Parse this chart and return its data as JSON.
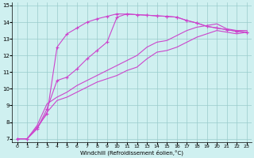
{
  "xlabel": "Windchill (Refroidissement éolien,°C)",
  "bg_color": "#cff0f0",
  "grid_color": "#99cccc",
  "line_color": "#cc44cc",
  "xlim": [
    -0.5,
    23.5
  ],
  "ylim": [
    6.8,
    15.2
  ],
  "xticks": [
    0,
    1,
    2,
    3,
    4,
    5,
    6,
    7,
    8,
    9,
    10,
    11,
    12,
    13,
    14,
    15,
    16,
    17,
    18,
    19,
    20,
    21,
    22,
    23
  ],
  "yticks": [
    7,
    8,
    9,
    10,
    11,
    12,
    13,
    14,
    15
  ],
  "curve1_x": [
    0,
    1,
    2,
    3,
    4,
    5,
    6,
    7,
    8,
    9,
    10,
    11,
    12,
    13,
    14,
    15,
    16,
    17,
    18,
    19,
    20,
    21,
    22,
    23
  ],
  "curve1_y": [
    7.0,
    7.0,
    7.6,
    8.6,
    9.3,
    9.5,
    9.8,
    10.1,
    10.4,
    10.6,
    10.8,
    11.1,
    11.3,
    11.8,
    12.2,
    12.3,
    12.5,
    12.8,
    13.1,
    13.3,
    13.5,
    13.4,
    13.3,
    13.4
  ],
  "curve2_x": [
    0,
    1,
    2,
    3,
    4,
    5,
    6,
    7,
    8,
    9,
    10,
    11,
    12,
    13,
    14,
    15,
    16,
    17,
    18,
    19,
    20,
    21,
    22,
    23
  ],
  "curve2_y": [
    7.0,
    7.0,
    7.8,
    9.1,
    9.5,
    9.8,
    10.2,
    10.5,
    10.8,
    11.1,
    11.4,
    11.7,
    12.0,
    12.5,
    12.8,
    12.9,
    13.2,
    13.5,
    13.7,
    13.8,
    13.9,
    13.6,
    13.5,
    13.5
  ],
  "curve3_x": [
    0,
    1,
    2,
    3,
    4,
    5,
    6,
    7,
    8,
    9,
    10,
    11,
    12,
    13,
    14,
    15,
    16,
    17,
    18,
    19,
    20,
    21,
    22,
    23
  ],
  "curve3_y": [
    7.0,
    7.0,
    7.6,
    8.8,
    10.5,
    10.7,
    11.2,
    11.8,
    12.3,
    12.8,
    14.3,
    14.5,
    14.45,
    14.42,
    14.38,
    14.35,
    14.3,
    14.1,
    13.95,
    13.75,
    13.65,
    13.55,
    13.45,
    13.4
  ],
  "curve4_x": [
    0,
    1,
    2,
    3,
    4,
    5,
    6,
    7,
    8,
    9,
    10,
    11,
    12,
    13,
    14,
    15,
    16,
    17,
    18,
    19,
    20,
    21,
    22,
    23
  ],
  "curve4_y": [
    7.0,
    7.0,
    7.7,
    8.5,
    12.5,
    13.3,
    13.65,
    14.0,
    14.2,
    14.35,
    14.5,
    14.48,
    14.45,
    14.42,
    14.38,
    14.35,
    14.3,
    14.1,
    13.95,
    13.75,
    13.65,
    13.55,
    13.45,
    13.4
  ]
}
